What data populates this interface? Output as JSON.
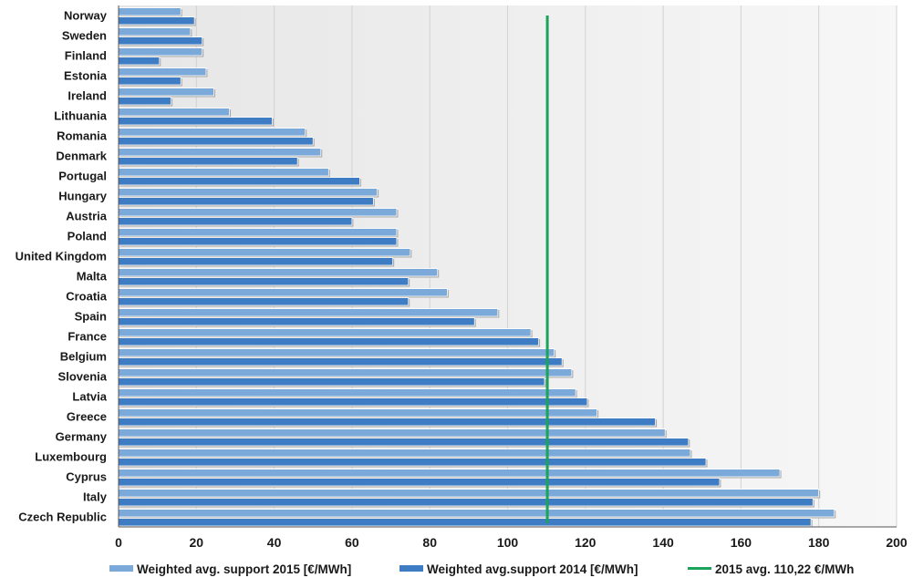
{
  "chart_data": {
    "type": "bar",
    "orientation": "horizontal",
    "categories": [
      "Norway",
      "Sweden",
      "Finland",
      "Estonia",
      "Ireland",
      "Lithuania",
      "Romania",
      "Denmark",
      "Portugal",
      "Hungary",
      "Austria",
      "Poland",
      "United Kingdom",
      "Malta",
      "Croatia",
      "Spain",
      "France",
      "Belgium",
      "Slovenia",
      "Latvia",
      "Greece",
      "Germany",
      "Luxembourg",
      "Cyprus",
      "Italy",
      "Czech Republic"
    ],
    "series": [
      {
        "name": "Weighted avg. support 2015 [€/MWh]",
        "color": "#7ba9d9",
        "values": [
          16,
          18.5,
          21.5,
          22.5,
          24.5,
          28.5,
          48,
          52,
          54,
          66.5,
          71.5,
          71.5,
          75,
          82,
          84.5,
          97.5,
          106,
          112,
          116.5,
          117.5,
          123,
          140.5,
          147,
          170,
          180,
          184
        ]
      },
      {
        "name": "Weighted avg.support 2014 [€/MWh]",
        "color": "#3e7cc3",
        "values": [
          19.5,
          21.5,
          10.5,
          16,
          13.5,
          39.5,
          50,
          46,
          62,
          65.5,
          60,
          71.5,
          70.5,
          74.5,
          74.5,
          91.5,
          108,
          114,
          109.5,
          120.5,
          138,
          146.5,
          151,
          154.5,
          178.5,
          178
        ]
      }
    ],
    "reference_line": {
      "name": "2015 avg. 110,22 €/MWh",
      "value": 110.22,
      "color": "#1aa35a"
    },
    "x_ticks": [
      "0",
      "20",
      "40",
      "60",
      "80",
      "100",
      "120",
      "140",
      "160",
      "180",
      "200"
    ],
    "xlim": [
      0,
      200
    ],
    "grid": "vertical",
    "legend_position": "bottom"
  }
}
